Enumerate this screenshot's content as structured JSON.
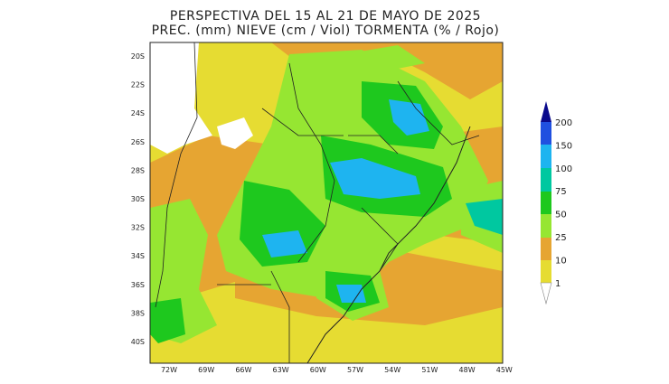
{
  "header": {
    "title": "PERSPECTIVA DEL 15 AL 21 DE MAYO DE 2025",
    "subtitle": "PREC. (mm) NIEVE (cm / Viol) TORMENTA (% / Rojo)"
  },
  "map": {
    "lat_labels": [
      "20S",
      "22S",
      "24S",
      "26S",
      "28S",
      "30S",
      "32S",
      "34S",
      "36S",
      "38S",
      "40S"
    ],
    "lon_labels": [
      "72W",
      "69W",
      "66W",
      "63W",
      "60W",
      "57W",
      "54W",
      "51W",
      "48W",
      "45W"
    ]
  },
  "colorbar": {
    "labels": [
      "200",
      "150",
      "100",
      "75",
      "50",
      "25",
      "10",
      "1"
    ]
  }
}
